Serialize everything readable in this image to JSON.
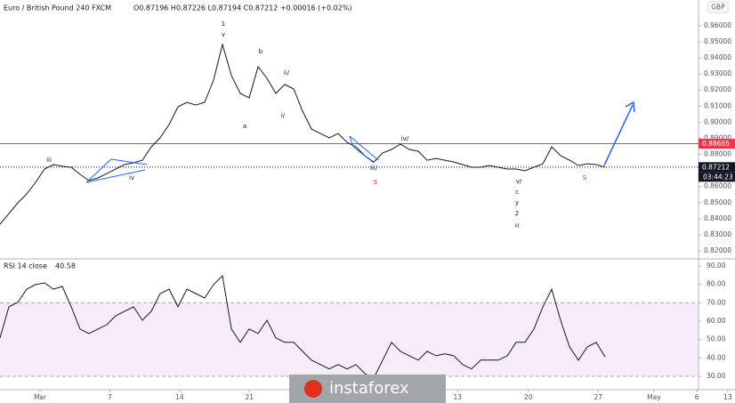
{
  "chart_data": {
    "type": "line",
    "title": "Euro / British Pound  240  FXCM",
    "ohlc_header": "O0.87196 H0.87226 L0.87194 C0.87212 +0.00016 (+0.02%)",
    "currency": "GBP",
    "countdown": "03:44:23",
    "watermark": "instaforex",
    "x": [
      -4.02,
      -3.13,
      -2.23,
      -1.34,
      -0.45,
      0.45,
      1.34,
      2.23,
      3.13,
      4.02,
      4.91,
      5.8,
      6.7,
      7.59,
      8.48,
      9.38,
      10.27,
      11.16,
      12.05,
      12.95,
      13.84,
      14.73,
      15.63,
      16.52,
      17.41,
      18.3,
      19.2,
      20.09,
      20.98,
      21.88,
      22.77,
      23.66,
      24.55,
      25.45,
      26.34,
      27.23,
      28.13,
      29.02,
      29.91,
      30.8,
      31.7,
      32.59,
      33.48,
      34.38,
      35.27,
      36.16,
      37.05,
      37.95,
      38.84,
      39.73,
      40.63,
      41.52,
      42.41,
      43.3,
      44.2,
      45.09,
      45.98,
      46.88,
      47.77,
      48.66,
      49.55,
      50.45,
      51.34,
      52.23,
      53.13,
      54.02,
      54.91,
      55.8,
      56.7
    ],
    "series": [
      {
        "name": "EURGBP",
        "color": "#131722",
        "pane": "price",
        "values": [
          0.8366,
          0.8432,
          0.8499,
          0.8554,
          0.8626,
          0.8709,
          0.8737,
          0.8726,
          0.872,
          0.8676,
          0.8637,
          0.8654,
          0.8681,
          0.8709,
          0.8737,
          0.8748,
          0.8764,
          0.8847,
          0.8903,
          0.8986,
          0.9096,
          0.9124,
          0.9107,
          0.9124,
          0.9262,
          0.9484,
          0.929,
          0.9179,
          0.9152,
          0.9345,
          0.9273,
          0.9179,
          0.9235,
          0.9207,
          0.9069,
          0.8958,
          0.893,
          0.8903,
          0.893,
          0.8875,
          0.8847,
          0.8792,
          0.8753,
          0.8809,
          0.8831,
          0.8864,
          0.8831,
          0.882,
          0.8764,
          0.8775,
          0.8764,
          0.8753,
          0.8737,
          0.872,
          0.872,
          0.8731,
          0.872,
          0.8709,
          0.8709,
          0.8698,
          0.872,
          0.8742,
          0.8847,
          0.8792,
          0.8764,
          0.8731,
          0.8742,
          0.8737,
          0.8721
        ]
      },
      {
        "name": "RSI 14 close",
        "color": "#131722",
        "pane": "rsi",
        "last_label": "40.58",
        "values": [
          50.9,
          67.8,
          70.2,
          77.4,
          79.9,
          80.8,
          77.4,
          78.9,
          67.8,
          55.7,
          53.3,
          55.7,
          58.1,
          62.9,
          65.4,
          67.8,
          60.5,
          65.4,
          75.0,
          77.4,
          67.8,
          77.4,
          75.0,
          72.6,
          79.9,
          84.7,
          55.7,
          48.5,
          55.7,
          53.3,
          60.5,
          50.9,
          48.5,
          48.5,
          43.6,
          38.8,
          36.4,
          34.0,
          36.4,
          34.0,
          36.4,
          31.5,
          29.1,
          38.8,
          48.5,
          43.6,
          41.2,
          38.8,
          43.6,
          41.2,
          42.2,
          41.2,
          36.4,
          34.0,
          38.8,
          38.8,
          38.8,
          41.2,
          48.5,
          48.5,
          55.7,
          67.8,
          77.4,
          60.5,
          46.0,
          38.8,
          46.0,
          48.5,
          40.58
        ]
      }
    ],
    "xlim": [
      -4.02,
      69.73
    ],
    "xticks": [
      {
        "value": 0,
        "label": "Mar"
      },
      7,
      14,
      21,
      {
        "value": 41.9,
        "label": "13"
      },
      {
        "value": 49,
        "label": "20"
      },
      {
        "value": 56,
        "label": "27"
      },
      {
        "value": 61.6,
        "label": "May"
      },
      {
        "value": 65.9,
        "label": "6"
      },
      {
        "value": 69,
        "label": "13"
      }
    ],
    "ylim": [
      0.8156,
      0.976
    ],
    "yticks": [
      {
        "value": 0.82,
        "label": "0.82000"
      },
      {
        "value": 0.83,
        "label": "0.83000"
      },
      {
        "value": 0.84,
        "label": "0.84000"
      },
      {
        "value": 0.85,
        "label": "0.85000"
      },
      {
        "value": 0.86,
        "label": "0.86000"
      },
      {
        "value": 0.87,
        "label": "0.87000"
      },
      {
        "value": 0.88,
        "label": "0.88000"
      },
      {
        "value": 0.89,
        "label": "0.89000"
      },
      {
        "value": 0.9,
        "label": "0.90000"
      },
      {
        "value": 0.91,
        "label": "0.91000"
      },
      {
        "value": 0.92,
        "label": "0.92000"
      },
      {
        "value": 0.93,
        "label": "0.93000"
      },
      {
        "value": 0.94,
        "label": "0.94000"
      },
      {
        "value": 0.95,
        "label": "0.95000"
      },
      {
        "value": 0.96,
        "label": "0.96000"
      }
    ],
    "levels": [
      {
        "value": 0.88665,
        "color": "#f23645"
      },
      {
        "value": 0.87212,
        "color": "#131722"
      }
    ],
    "y2lim": [
      24.2,
      93.4
    ],
    "y2ticks": [
      {
        "value": 30,
        "label": "30.00"
      },
      {
        "value": 40,
        "label": "40.00"
      },
      {
        "value": 50,
        "label": "50.00"
      },
      {
        "value": 60,
        "label": "60.00"
      },
      {
        "value": 70,
        "label": "70.00"
      },
      {
        "value": 80,
        "label": "80.00"
      },
      {
        "value": 90,
        "label": "90.00"
      }
    ],
    "rsi_band": [
      30,
      70
    ],
    "annotations": [
      "iii",
      "iv",
      "1",
      "v",
      "b",
      "ii/",
      "a",
      "i/",
      "iii/",
      "iv/",
      "S",
      "v/",
      "c",
      "y",
      "2",
      "H",
      "S"
    ]
  }
}
